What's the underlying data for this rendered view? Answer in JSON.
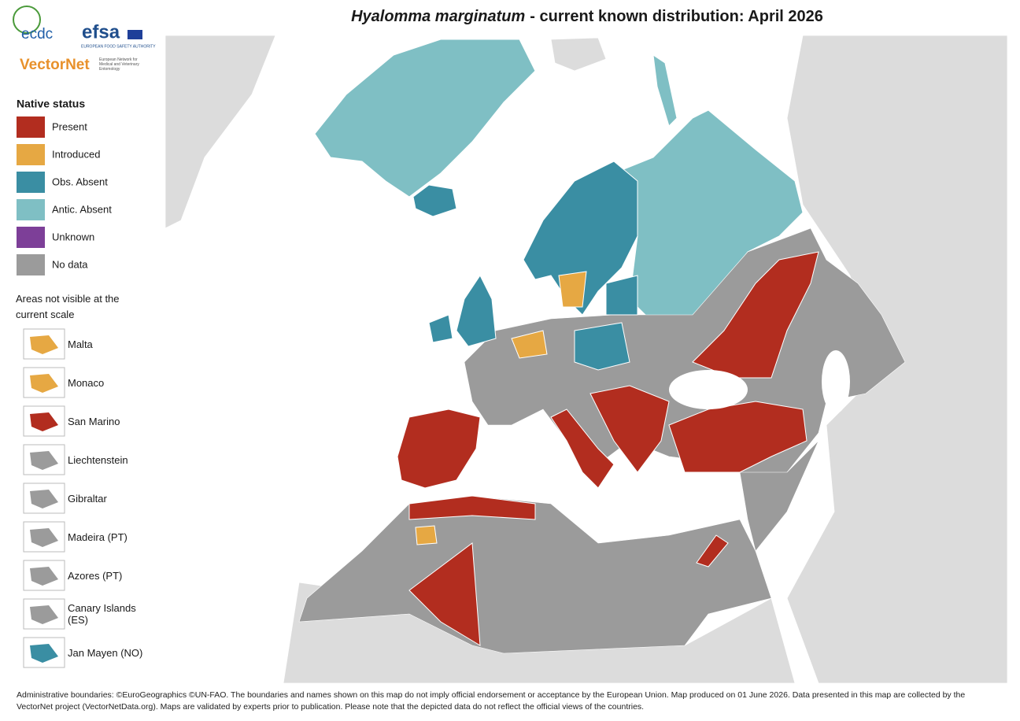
{
  "header": {
    "title_italic": "Hyalomma marginatum",
    "title_rest": "- current known distribution: April 2026"
  },
  "logos": {
    "ecdc": "ecdc",
    "efsa": "efsa",
    "efsa_sub": "EUROPEAN FOOD SAFETY AUTHORITY",
    "vectornet": "VectorNet",
    "vectornet_sub": "European Network for Medical and Veterinary Entomology"
  },
  "legend": {
    "title": "Native status",
    "items": [
      {
        "label": "Present",
        "color": "#b22d1f"
      },
      {
        "label": "Introduced",
        "color": "#e6a843"
      },
      {
        "label": "Obs. Absent",
        "color": "#3a8ea3"
      },
      {
        "label": "Antic. Absent",
        "color": "#7fbfc4"
      },
      {
        "label": "Unknown",
        "color": "#7d3f98"
      },
      {
        "label": "No data",
        "color": "#9b9b9b"
      }
    ]
  },
  "small_areas": {
    "title": "Areas not visible at the current scale",
    "items": [
      {
        "label": "Malta",
        "color": "#e6a843"
      },
      {
        "label": "Monaco",
        "color": "#e6a843"
      },
      {
        "label": "San Marino",
        "color": "#b22d1f"
      },
      {
        "label": "Liechtenstein",
        "color": "#9b9b9b"
      },
      {
        "label": "Gibraltar",
        "color": "#9b9b9b"
      },
      {
        "label": "Madeira (PT)",
        "color": "#9b9b9b"
      },
      {
        "label": "Azores (PT)",
        "color": "#9b9b9b"
      },
      {
        "label": "Canary Islands (ES)",
        "color": "#9b9b9b"
      },
      {
        "label": "Jan Mayen (NO)",
        "color": "#3a8ea3"
      }
    ]
  },
  "footer": "Administrative boundaries: ©EuroGeographics ©UN-FAO. The boundaries and names shown on this map do not imply official endorsement or acceptance by the European Union. Map produced on 01 June 2026. Data presented in this map are collected by the VectorNet project (VectorNetData.org). Maps are validated by experts prior to publication. Please note that the depicted data do not reflect the official views of the countries."
}
